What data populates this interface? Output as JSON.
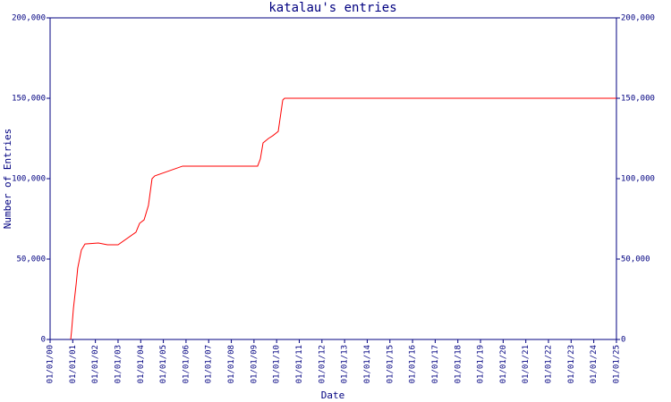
{
  "chart_data": {
    "type": "line",
    "title": "katalau's entries",
    "x_label": "Date",
    "y_label": "Number of Entries",
    "x": [
      0.91,
      0.95,
      1.03,
      1.15,
      1.22,
      1.38,
      1.54,
      2.13,
      2.53,
      3.0,
      3.79,
      3.95,
      4.15,
      4.34,
      4.5,
      4.62,
      5.85,
      9.16,
      9.28,
      9.4,
      9.64,
      9.83,
      10.07,
      10.27,
      10.35,
      25
    ],
    "series": [
      {
        "name": "Entries",
        "color": "#ff0000",
        "values": [
          0,
          5556,
          19400,
          34400,
          44400,
          55600,
          59400,
          60000,
          58900,
          58900,
          66700,
          72200,
          74400,
          83300,
          100000,
          101700,
          107800,
          107800,
          112200,
          122200,
          125000,
          126700,
          129400,
          148900,
          150000,
          150000
        ]
      }
    ],
    "xlim": [
      0,
      25
    ],
    "xticks": [
      {
        "value": 0,
        "label": "01/01/00"
      },
      {
        "value": 1,
        "label": "01/01/01"
      },
      {
        "value": 2,
        "label": "01/01/02"
      },
      {
        "value": 3,
        "label": "01/01/03"
      },
      {
        "value": 4,
        "label": "01/01/04"
      },
      {
        "value": 5,
        "label": "01/01/05"
      },
      {
        "value": 6,
        "label": "01/01/06"
      },
      {
        "value": 7,
        "label": "01/01/07"
      },
      {
        "value": 8,
        "label": "01/01/08"
      },
      {
        "value": 9,
        "label": "01/01/09"
      },
      {
        "value": 10,
        "label": "01/01/10"
      },
      {
        "value": 11,
        "label": "01/01/11"
      },
      {
        "value": 12,
        "label": "01/01/12"
      },
      {
        "value": 13,
        "label": "01/01/13"
      },
      {
        "value": 14,
        "label": "01/01/14"
      },
      {
        "value": 15,
        "label": "01/01/15"
      },
      {
        "value": 16,
        "label": "01/01/16"
      },
      {
        "value": 17,
        "label": "01/01/17"
      },
      {
        "value": 18,
        "label": "01/01/18"
      },
      {
        "value": 19,
        "label": "01/01/19"
      },
      {
        "value": 20,
        "label": "01/01/20"
      },
      {
        "value": 21,
        "label": "01/01/21"
      },
      {
        "value": 22,
        "label": "01/01/22"
      },
      {
        "value": 23,
        "label": "01/01/23"
      },
      {
        "value": 24,
        "label": "01/01/24"
      },
      {
        "value": 25,
        "label": "01/01/25"
      }
    ],
    "ylim": [
      0,
      200000
    ],
    "yticks": [
      0,
      {
        "value": 50000,
        "label": "50,000"
      },
      {
        "value": 100000,
        "label": "100,000"
      },
      {
        "value": 150000,
        "label": "150,000"
      },
      {
        "value": 200000,
        "label": "200,000"
      }
    ],
    "axis_color": "#000080"
  }
}
